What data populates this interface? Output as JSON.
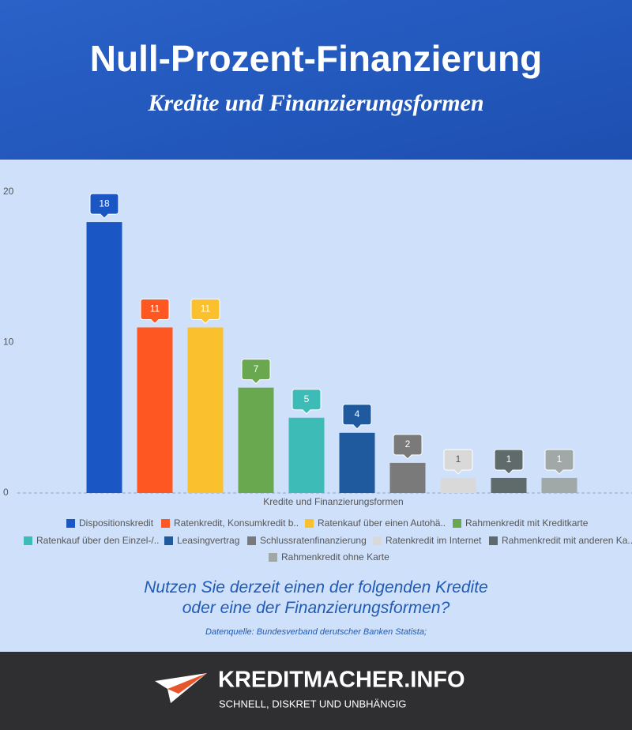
{
  "chart_data": {
    "type": "bar",
    "title": "Null-Prozent-Finanzierung",
    "subtitle": "Kredite und Finanzierungsformen",
    "x_label": "Kredite und Finanzierungsformen",
    "categories": [
      "Dispositionskredit",
      "Ratenkredit, Konsumkredit b..",
      "Ratenkauf über einen Autohä..",
      "Rahmenkredit mit Kreditkarte",
      "Ratenkauf über den Einzel-/..",
      "Leasingvertrag",
      "Schlussratenfinanzierung",
      "Ratenkredit im Internet",
      "Rahmenkredit mit anderen Ka..",
      "Rahmenkredit ohne Karte"
    ],
    "values": [
      18,
      11,
      11,
      7,
      5,
      4,
      2,
      1,
      1,
      1
    ],
    "colors": [
      "#1a56c4",
      "#ff5722",
      "#fbc02d",
      "#6aa84f",
      "#3dbbb6",
      "#1f5a9e",
      "#7a7a7a",
      "#d9d9d9",
      "#5f6a6a",
      "#a0a8a8"
    ],
    "ylim": [
      0,
      20
    ],
    "yticks": [
      0,
      10,
      20
    ],
    "grid": false,
    "question": "Nutzen Sie derzeit einen der folgenden Kredite oder eine der Finanzierungsformen?",
    "source": "Datenquelle: Bundesverband derutscher Banken Statista;"
  },
  "footer": {
    "brand": "KREDITMACHER.INFO",
    "tagline": "SCHNELL, DISKRET UND UNBHÄNGIG"
  }
}
